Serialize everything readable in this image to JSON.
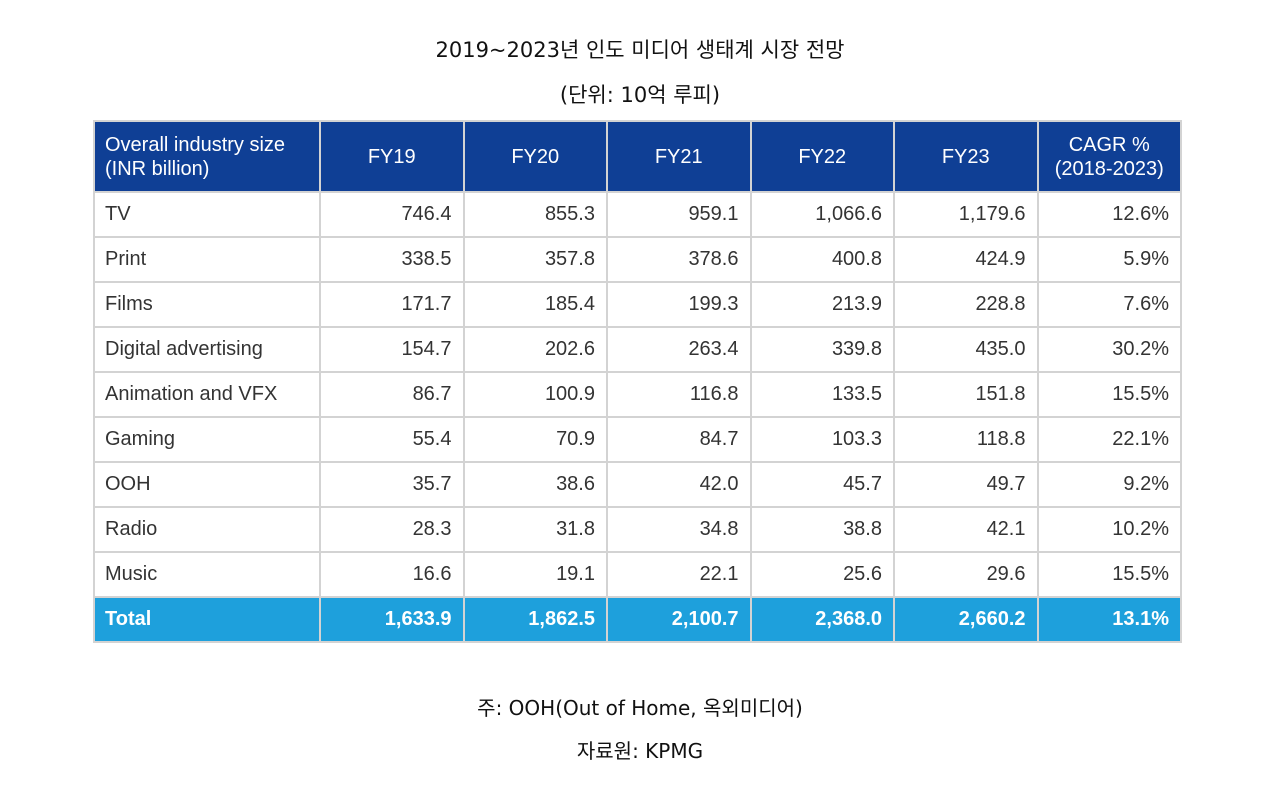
{
  "title": "2019~2023년 인도 미디어 생태계 시장 전망",
  "unit": "(단위: 10억 루피)",
  "table": {
    "header": {
      "first_line1": "Overall industry size",
      "first_line2": "(INR billion)",
      "years": [
        "FY19",
        "FY20",
        "FY21",
        "FY22",
        "FY23"
      ],
      "cagr_line1": "CAGR %",
      "cagr_line2": "(2018-2023)"
    },
    "rows": [
      {
        "label": "TV",
        "values": [
          "746.4",
          "855.3",
          "959.1",
          "1,066.6",
          "1,179.6"
        ],
        "cagr": "12.6%"
      },
      {
        "label": "Print",
        "values": [
          "338.5",
          "357.8",
          "378.6",
          "400.8",
          "424.9"
        ],
        "cagr": "5.9%"
      },
      {
        "label": "Films",
        "values": [
          "171.7",
          "185.4",
          "199.3",
          "213.9",
          "228.8"
        ],
        "cagr": "7.6%"
      },
      {
        "label": "Digital advertising",
        "values": [
          "154.7",
          "202.6",
          "263.4",
          "339.8",
          "435.0"
        ],
        "cagr": "30.2%"
      },
      {
        "label": "Animation and VFX",
        "values": [
          "86.7",
          "100.9",
          "116.8",
          "133.5",
          "151.8"
        ],
        "cagr": "15.5%"
      },
      {
        "label": "Gaming",
        "values": [
          "55.4",
          "70.9",
          "84.7",
          "103.3",
          "118.8"
        ],
        "cagr": "22.1%"
      },
      {
        "label": "OOH",
        "values": [
          "35.7",
          "38.6",
          "42.0",
          "45.7",
          "49.7"
        ],
        "cagr": "9.2%"
      },
      {
        "label": "Radio",
        "values": [
          "28.3",
          "31.8",
          "34.8",
          "38.8",
          "42.1"
        ],
        "cagr": "10.2%"
      },
      {
        "label": "Music",
        "values": [
          "16.6",
          "19.1",
          "22.1",
          "25.6",
          "29.6"
        ],
        "cagr": "15.5%"
      }
    ],
    "total": {
      "label": "Total",
      "values": [
        "1,633.9",
        "1,862.5",
        "2,100.7",
        "2,368.0",
        "2,660.2"
      ],
      "cagr": "13.1%"
    }
  },
  "note": "주: OOH(Out of Home, 옥외미디어)",
  "source": "자료원: KPMG",
  "colors": {
    "header_bg": "#0f3f95",
    "total_bg": "#1ea0dc",
    "grid": "#d3d3d3"
  }
}
